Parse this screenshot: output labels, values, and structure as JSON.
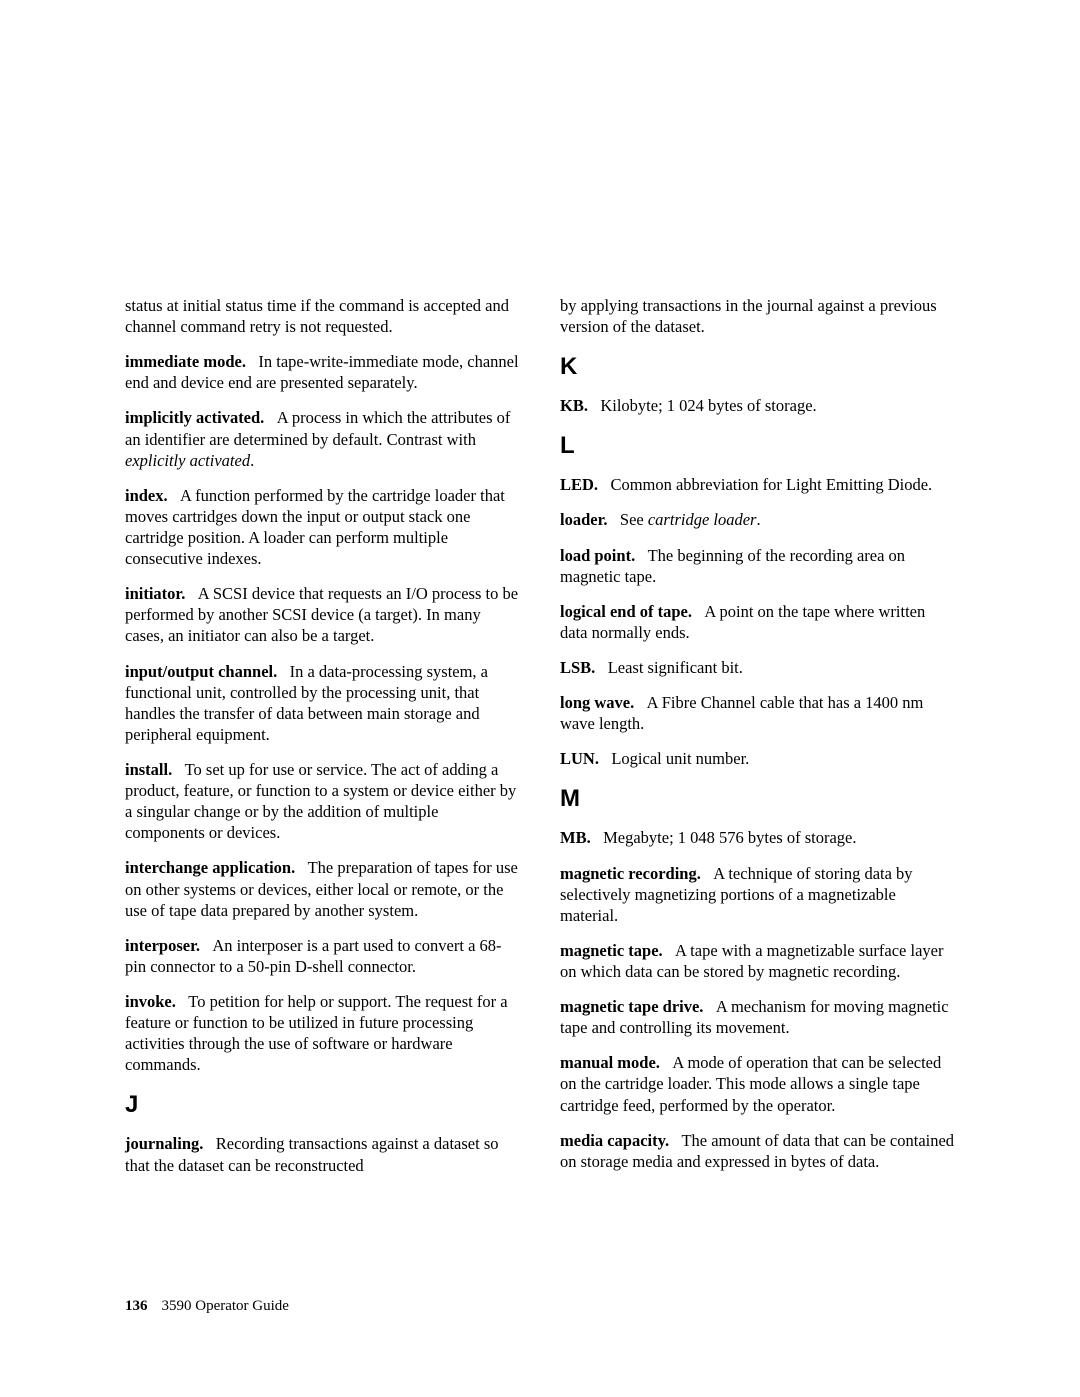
{
  "footer": {
    "page_number": "136",
    "guide": "3590 Operator Guide"
  },
  "col1": {
    "orphan": "status at initial status time if the command is accepted and channel command retry is not requested.",
    "immediate_mode": {
      "term": "immediate mode.",
      "def": "In tape-write-immediate mode, channel end and device end are presented separately."
    },
    "implicitly_activated": {
      "term": "implicitly activated.",
      "def_a": "A process in which the attributes of an identifier are determined by default. Contrast with ",
      "italic": "explicitly activated",
      "def_b": "."
    },
    "index": {
      "term": "index.",
      "def": "A function performed by the cartridge loader that moves cartridges down the input or output stack one cartridge position. A loader can perform multiple consecutive indexes."
    },
    "initiator": {
      "term": "initiator.",
      "def": "A SCSI device that requests an I/O process to be performed by another SCSI device (a target). In many cases, an initiator can also be a target."
    },
    "io_channel": {
      "term": "input/output channel.",
      "def": "In a data-processing system, a functional unit, controlled by the processing unit, that handles the transfer of data between main storage and peripheral equipment."
    },
    "install": {
      "term": "install.",
      "def": "To set up for use or service. The act of adding a product, feature, or function to a system or device either by a singular change or by the addition of multiple components or devices."
    },
    "interchange": {
      "term": "interchange application.",
      "def": "The preparation of tapes for use on other systems or devices, either local or remote, or the use of tape data prepared by another system."
    },
    "interposer": {
      "term": "interposer.",
      "def": "An interposer is a part used to convert a 68-pin connector to a 50-pin D-shell connector."
    },
    "invoke": {
      "term": "invoke.",
      "def": "To petition for help or support. The request for a feature or function to be utilized in future processing activities through the use of software or hardware commands."
    },
    "letter_j": "J",
    "journaling": {
      "term": "journaling.",
      "def": "Recording transactions against a dataset so that the dataset can be reconstructed"
    }
  },
  "col2": {
    "orphan": "by applying transactions in the journal against a previous version of the dataset.",
    "letter_k": "K",
    "kb": {
      "term": "KB.",
      "def": "Kilobyte; 1 024 bytes of storage."
    },
    "letter_l": "L",
    "led": {
      "term": "LED.",
      "def": "Common abbreviation for Light Emitting Diode."
    },
    "loader": {
      "term": "loader.",
      "def_a": "See ",
      "italic": "cartridge loader",
      "def_b": "."
    },
    "load_point": {
      "term": "load point.",
      "def": "The beginning of the recording area on magnetic tape."
    },
    "logical_eot": {
      "term": "logical end of tape.",
      "def": "A point on the tape where written data normally ends."
    },
    "lsb": {
      "term": "LSB.",
      "def": "Least significant bit."
    },
    "long_wave": {
      "term": "long wave.",
      "def": "A Fibre Channel cable that has a 1400 nm wave length."
    },
    "lun": {
      "term": "LUN.",
      "def": "Logical unit number."
    },
    "letter_m": "M",
    "mb": {
      "term": "MB.",
      "def": "Megabyte; 1 048 576 bytes of storage."
    },
    "mag_recording": {
      "term": "magnetic recording.",
      "def": "A technique of storing data by selectively magnetizing portions of a magnetizable material."
    },
    "mag_tape": {
      "term": "magnetic tape.",
      "def": "A tape with a magnetizable surface layer on which data can be stored by magnetic recording."
    },
    "mag_tape_drive": {
      "term": "magnetic tape drive.",
      "def": "A mechanism for moving magnetic tape and controlling its movement."
    },
    "manual_mode": {
      "term": "manual mode.",
      "def": "A mode of operation that can be selected on the cartridge loader. This mode allows a single tape cartridge feed, performed by the operator."
    },
    "media_capacity": {
      "term": "media capacity.",
      "def": "The amount of data that can be contained on storage media and expressed in bytes of data."
    }
  }
}
